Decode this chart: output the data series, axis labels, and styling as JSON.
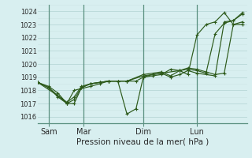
{
  "background_color": "#d8eff0",
  "grid_color_major": "#b8d8d8",
  "grid_color_minor": "#cce5e5",
  "line_color": "#2d5a1b",
  "vline_color": "#5a9080",
  "xlabel": "Pression niveau de la mer( hPa )",
  "ylim": [
    1015.5,
    1024.5
  ],
  "yticks": [
    1016,
    1017,
    1018,
    1019,
    1020,
    1021,
    1022,
    1023,
    1024
  ],
  "day_labels": [
    "Sam",
    "Mar",
    "Dim",
    "Lun"
  ],
  "day_positions": [
    12.5,
    50.5,
    116.0,
    175.0
  ],
  "vline_positions": [
    12.5,
    50.5,
    116.0,
    175.0
  ],
  "xlim": [
    0,
    230
  ],
  "series": [
    {
      "x": [
        0,
        12,
        22,
        32,
        40,
        48,
        58,
        68,
        78,
        88,
        98,
        108,
        116,
        126,
        136,
        146,
        156,
        165,
        175,
        185,
        195,
        205,
        215,
        225
      ],
      "y": [
        1018.6,
        1018.3,
        1017.8,
        1017.0,
        1017.0,
        1018.2,
        1018.5,
        1018.6,
        1018.7,
        1018.7,
        1016.2,
        1016.6,
        1019.0,
        1019.1,
        1019.2,
        1019.6,
        1019.5,
        1019.2,
        1022.2,
        1023.0,
        1023.2,
        1023.9,
        1023.0,
        1023.0
      ]
    },
    {
      "x": [
        0,
        12,
        22,
        32,
        40,
        48,
        58,
        68,
        78,
        88,
        98,
        116,
        136,
        156,
        165,
        175,
        185,
        195,
        205,
        215,
        225
      ],
      "y": [
        1018.6,
        1018.2,
        1017.6,
        1017.1,
        1017.5,
        1018.3,
        1018.5,
        1018.6,
        1018.7,
        1018.7,
        1018.7,
        1019.1,
        1019.3,
        1019.5,
        1019.6,
        1019.5,
        1019.3,
        1022.3,
        1023.1,
        1023.3,
        1023.8
      ]
    },
    {
      "x": [
        0,
        22,
        32,
        40,
        48,
        58,
        68,
        78,
        88,
        98,
        108,
        116,
        126,
        136,
        146,
        156,
        165,
        175,
        195,
        205,
        215,
        225
      ],
      "y": [
        1018.6,
        1017.6,
        1017.0,
        1017.3,
        1018.2,
        1018.5,
        1018.6,
        1018.7,
        1018.7,
        1018.7,
        1018.7,
        1019.0,
        1019.2,
        1019.3,
        1019.0,
        1019.2,
        1019.5,
        1019.3,
        1019.1,
        1023.2,
        1023.3,
        1023.9
      ]
    },
    {
      "x": [
        0,
        12,
        22,
        32,
        40,
        58,
        68,
        78,
        98,
        116,
        136,
        146,
        156,
        165,
        175,
        185,
        195,
        205,
        215,
        225
      ],
      "y": [
        1018.6,
        1018.2,
        1017.5,
        1017.0,
        1018.0,
        1018.3,
        1018.5,
        1018.7,
        1018.7,
        1019.2,
        1019.4,
        1019.1,
        1019.5,
        1019.7,
        1019.6,
        1019.4,
        1019.2,
        1019.3,
        1023.0,
        1023.2
      ]
    }
  ]
}
